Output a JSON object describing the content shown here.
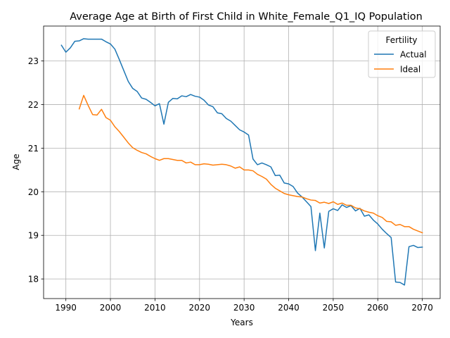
{
  "chart_data": {
    "type": "line",
    "title": "Average Age at Birth of First Child in White_Female_Q1_IQ Population",
    "xlabel": "Years",
    "ylabel": "Age",
    "xlim": [
      1985,
      2074
    ],
    "ylim": [
      17.55,
      23.8
    ],
    "xticks": [
      1990,
      2000,
      2010,
      2020,
      2030,
      2040,
      2050,
      2060,
      2070
    ],
    "yticks": [
      18,
      19,
      20,
      21,
      22,
      23
    ],
    "grid": true,
    "legend": {
      "title": "Fertility",
      "placement": "top-right",
      "entries": [
        "Actual",
        "Ideal"
      ]
    },
    "series": [
      {
        "name": "Actual",
        "color": "#1f77b4",
        "x": [
          1989,
          1990,
          1991,
          1992,
          1993,
          1994,
          1995,
          1996,
          1997,
          1998,
          1999,
          2000,
          2001,
          2002,
          2003,
          2004,
          2005,
          2006,
          2007,
          2008,
          2009,
          2010,
          2011,
          2012,
          2013,
          2014,
          2015,
          2016,
          2017,
          2018,
          2019,
          2020,
          2021,
          2022,
          2023,
          2024,
          2025,
          2026,
          2027,
          2028,
          2029,
          2030,
          2031,
          2032,
          2033,
          2034,
          2035,
          2036,
          2037,
          2038,
          2039,
          2040,
          2041,
          2042,
          2043,
          2044,
          2045,
          2046,
          2047,
          2048,
          2049,
          2050,
          2051,
          2052,
          2053,
          2054,
          2055,
          2056,
          2057,
          2058,
          2059,
          2060,
          2061,
          2062,
          2063,
          2064,
          2065,
          2066,
          2067,
          2068,
          2069,
          2070
        ],
        "y": [
          23.36,
          23.2,
          23.3,
          23.45,
          23.46,
          23.51,
          23.5,
          23.5,
          23.5,
          23.5,
          23.44,
          23.39,
          23.27,
          23.03,
          22.78,
          22.53,
          22.37,
          22.3,
          22.15,
          22.12,
          22.05,
          21.97,
          22.02,
          21.55,
          22.05,
          22.14,
          22.13,
          22.2,
          22.18,
          22.23,
          22.19,
          22.17,
          22.1,
          21.99,
          21.95,
          21.81,
          21.79,
          21.68,
          21.62,
          21.52,
          21.42,
          21.37,
          21.3,
          20.75,
          20.62,
          20.66,
          20.62,
          20.57,
          20.37,
          20.38,
          20.2,
          20.18,
          20.12,
          19.97,
          19.88,
          19.77,
          19.66,
          18.65,
          19.51,
          18.71,
          19.55,
          19.61,
          19.57,
          19.7,
          19.64,
          19.68,
          19.56,
          19.62,
          19.44,
          19.47,
          19.35,
          19.26,
          19.14,
          19.04,
          18.95,
          17.93,
          17.92,
          17.86,
          18.74,
          18.77,
          18.72,
          18.73
        ]
      },
      {
        "name": "Ideal",
        "color": "#ff7f0e",
        "x": [
          1993,
          1994,
          1995,
          1996,
          1997,
          1998,
          1999,
          2000,
          2001,
          2002,
          2003,
          2004,
          2005,
          2006,
          2007,
          2008,
          2009,
          2010,
          2011,
          2012,
          2013,
          2014,
          2015,
          2016,
          2017,
          2018,
          2019,
          2020,
          2021,
          2022,
          2023,
          2024,
          2025,
          2026,
          2027,
          2028,
          2029,
          2030,
          2031,
          2032,
          2033,
          2034,
          2035,
          2036,
          2037,
          2038,
          2039,
          2040,
          2041,
          2042,
          2043,
          2044,
          2045,
          2046,
          2047,
          2048,
          2049,
          2050,
          2051,
          2052,
          2053,
          2054,
          2055,
          2056,
          2057,
          2058,
          2059,
          2060,
          2061,
          2062,
          2063,
          2064,
          2065,
          2066,
          2067,
          2068,
          2069,
          2070
        ],
        "y": [
          21.9,
          22.21,
          21.98,
          21.77,
          21.76,
          21.89,
          21.7,
          21.64,
          21.49,
          21.38,
          21.25,
          21.12,
          21.01,
          20.95,
          20.9,
          20.87,
          20.81,
          20.76,
          20.72,
          20.76,
          20.76,
          20.74,
          20.72,
          20.72,
          20.66,
          20.68,
          20.62,
          20.62,
          20.64,
          20.63,
          20.61,
          20.62,
          20.63,
          20.62,
          20.59,
          20.54,
          20.57,
          20.5,
          20.5,
          20.48,
          20.4,
          20.35,
          20.29,
          20.17,
          20.08,
          20.02,
          19.96,
          19.93,
          19.91,
          19.89,
          19.88,
          19.84,
          19.81,
          19.8,
          19.74,
          19.76,
          19.73,
          19.77,
          19.71,
          19.74,
          19.69,
          19.69,
          19.63,
          19.61,
          19.56,
          19.53,
          19.51,
          19.45,
          19.41,
          19.32,
          19.31,
          19.23,
          19.25,
          19.2,
          19.2,
          19.14,
          19.1,
          19.06
        ]
      }
    ]
  }
}
